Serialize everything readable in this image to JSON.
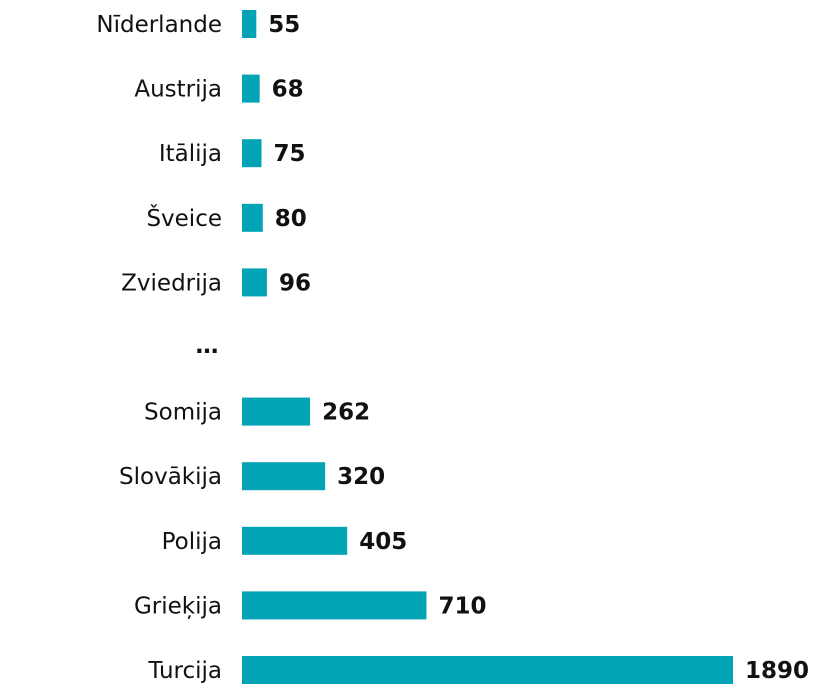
{
  "chart_data": {
    "type": "bar",
    "orientation": "horizontal",
    "categories": [
      "Nīderlande",
      "Austrija",
      "Itālija",
      "Šveice",
      "Zviedrija",
      "…",
      "Somija",
      "Slovākija",
      "Polija",
      "Grieķija",
      "Turcija"
    ],
    "values": [
      55,
      68,
      75,
      80,
      96,
      null,
      262,
      320,
      405,
      710,
      1890
    ],
    "value_labels": [
      "55",
      "68",
      "75",
      "80",
      "96",
      "",
      "262",
      "320",
      "405",
      "710",
      "1890"
    ],
    "title": "",
    "xlabel": "",
    "ylabel": "",
    "xlim": [
      0,
      1890
    ],
    "grid": false,
    "colors": {
      "bar": "#00a4b4"
    }
  }
}
